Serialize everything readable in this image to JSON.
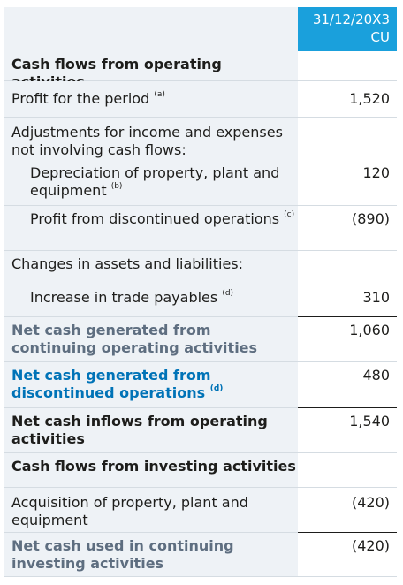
{
  "header": {
    "date": "31/12/20X3",
    "currency": "CU"
  },
  "rows": [
    {
      "label": "Cash flows from operating activities",
      "note": "",
      "value": ""
    },
    {
      "label": "Profit for the period",
      "note": "(a)",
      "value": "1,520"
    },
    {
      "label": "Adjustments for income and expenses not involving cash flows:",
      "note": "",
      "value": ""
    },
    {
      "label": "Depreciation of property, plant and equipment",
      "note": "(b)",
      "value": "120"
    },
    {
      "label": "Profit from discontinued operations",
      "note": "(c)",
      "value": "(890)"
    },
    {
      "label": "Changes in assets and liabilities:",
      "note": "",
      "value": ""
    },
    {
      "label": "Increase in trade payables",
      "note": "(d)",
      "value": "310"
    },
    {
      "label": "Net cash generated from continuing operating activities",
      "note": "",
      "value": "1,060"
    },
    {
      "label": "Net cash generated from discontinued operations",
      "note": "(d)",
      "value": "480"
    },
    {
      "label": "Net cash inflows from operating activities",
      "note": "",
      "value": "1,540"
    },
    {
      "label": "Cash flows from investing activities",
      "note": "",
      "value": ""
    },
    {
      "label": "Acquisition of property, plant and equipment",
      "note": "",
      "value": "(420)"
    },
    {
      "label": "Net cash used in continuing investing activities",
      "note": "",
      "value": "(420)"
    }
  ]
}
